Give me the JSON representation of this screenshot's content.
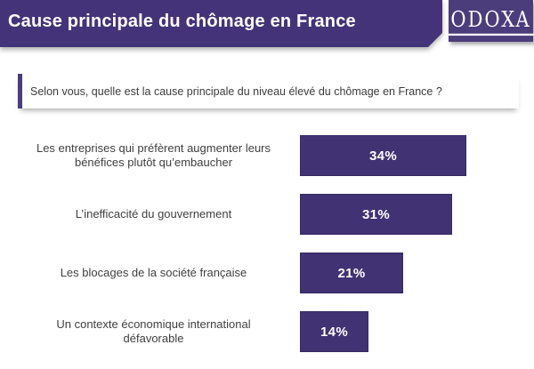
{
  "header": {
    "title": "Cause principale du chômage en France",
    "logo_text": "ODOXA",
    "banner_color": "#453379",
    "logo_bg_color": "#4B3C7C"
  },
  "question": {
    "text": "Selon vous, quelle est la cause principale du niveau élevé du chômage en France ?",
    "accent_color": "#4A3B7C"
  },
  "chart_data": {
    "type": "bar",
    "orientation": "horizontal",
    "title": "Cause principale du chômage en France",
    "subtitle": "Selon vous, quelle est la cause principale du niveau élevé du chômage en France ?",
    "categories": [
      "Les entreprises qui préfèrent augmenter leurs bénéfices plutôt qu’embaucher",
      "L’inefficacité du gouvernement",
      "Les blocages de la société française",
      "Un contexte économique international défavorable"
    ],
    "values": [
      34,
      31,
      21,
      14
    ],
    "value_labels": [
      "34%",
      "31%",
      "21%",
      "14%"
    ],
    "unit": "%",
    "xlim": [
      0,
      34
    ],
    "grid": false,
    "legend": false,
    "bar_color": "#403273",
    "label_color": "#3F3F3F"
  }
}
